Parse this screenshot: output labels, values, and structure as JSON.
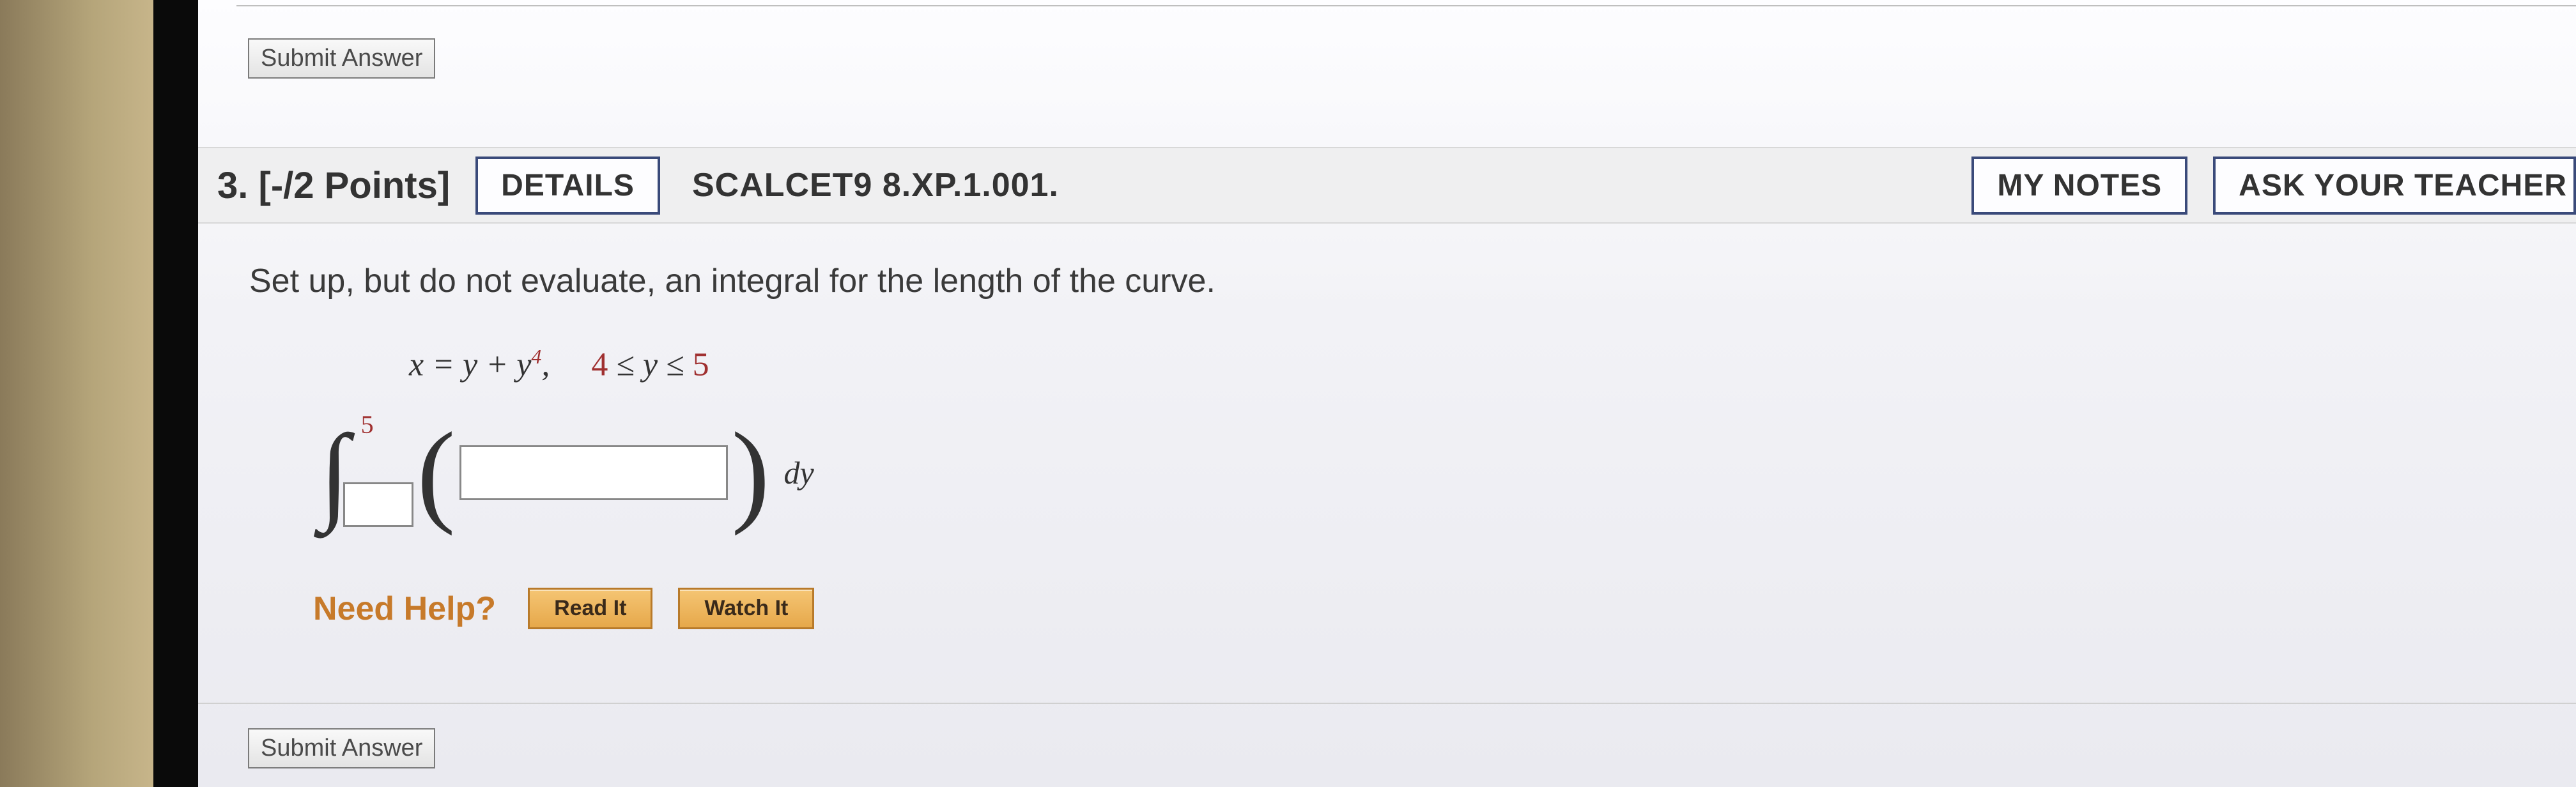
{
  "top_submit": {
    "label": "Submit Answer"
  },
  "question_header": {
    "number": "3.",
    "points": "[-/2 Points]",
    "details_label": "DETAILS",
    "code": "SCALCET9 8.XP.1.001.",
    "my_notes_label": "MY NOTES",
    "ask_teacher_label": "ASK YOUR TEACHER"
  },
  "prompt": "Set up, but do not evaluate, an integral for the length of the curve.",
  "equation": {
    "lhs": "x = y + y",
    "exp": "4",
    "sep": ",",
    "bounds_a": "4",
    "le1": "≤",
    "yvar": "y",
    "le2": "≤",
    "bounds_b": "5"
  },
  "integral": {
    "upper": "5",
    "lower_value": "",
    "integrand_value": "",
    "differential": "dy"
  },
  "help": {
    "label": "Need Help?",
    "read_label": "Read It",
    "watch_label": "Watch It"
  },
  "bottom_submit": {
    "label": "Submit Answer"
  }
}
